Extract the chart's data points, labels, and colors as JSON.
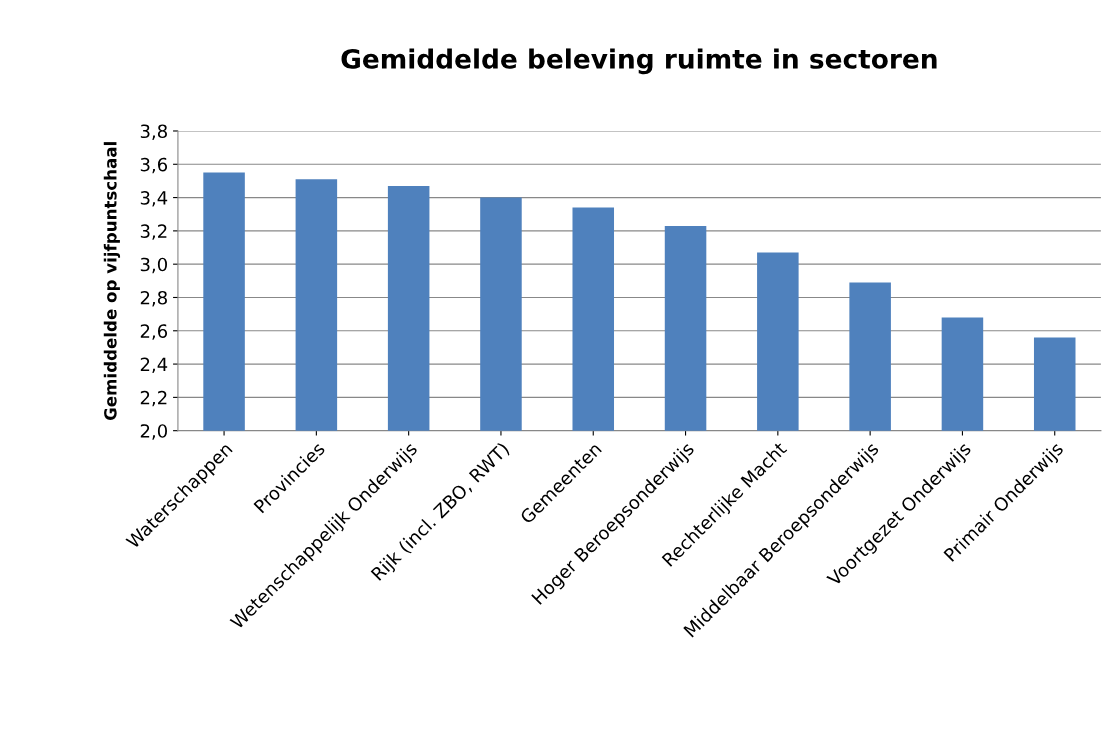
{
  "chart_data": {
    "type": "bar",
    "title": "Gemiddelde beleving ruimte in sectoren",
    "ylabel": "Gemiddelde op vijfpuntschaal",
    "categories": [
      "Waterschappen",
      "Provincies",
      "Wetenschappelijk Onderwijs",
      "Rijk (incl. ZBO, RWT)",
      "Gemeenten",
      "Hoger Beroepsonderwijs",
      "Rechterlijke Macht",
      "Middelbaar Beroepsonderwijs",
      "Voortgezet Onderwijs",
      "Primair Onderwijs"
    ],
    "values": [
      3.55,
      3.51,
      3.47,
      3.4,
      3.34,
      3.23,
      3.07,
      2.89,
      2.68,
      2.56
    ],
    "color": "#4f81bd",
    "ylim": [
      2.0,
      3.8
    ],
    "yticks": [
      {
        "value": 2.0,
        "label": "2,0"
      },
      {
        "value": 2.2,
        "label": "2,2"
      },
      {
        "value": 2.4,
        "label": "2,4"
      },
      {
        "value": 2.6,
        "label": "2,6"
      },
      {
        "value": 2.8,
        "label": "2,8"
      },
      {
        "value": 3.0,
        "label": "3,0"
      },
      {
        "value": 3.2,
        "label": "3,2"
      },
      {
        "value": 3.4,
        "label": "3,4"
      },
      {
        "value": 3.6,
        "label": "3,6"
      },
      {
        "value": 3.8,
        "label": "3,8"
      }
    ],
    "grid": "y"
  }
}
